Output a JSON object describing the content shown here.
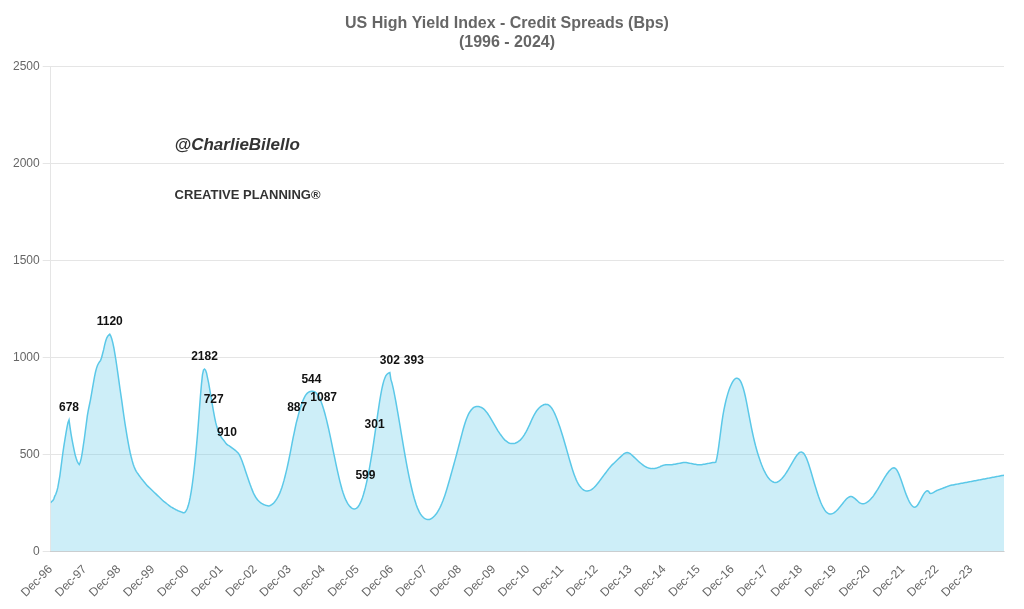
{
  "chart_data": {
    "type": "area",
    "title": "US High Yield Index - Credit Spreads (Bps)",
    "subtitle": "(1996 - 2024)",
    "watermark": "@CharlieBilello",
    "logo_text": "CREATIVE PLANNING®",
    "color": "#5BC8E8",
    "grid": "y",
    "legend": false,
    "ylim": [
      0,
      2500
    ],
    "yticks": [
      0,
      500,
      1000,
      1500,
      2000,
      2500
    ],
    "xlim": [
      0,
      936
    ],
    "xticks": [
      {
        "value": 0,
        "label": "Dec-96"
      },
      {
        "value": 33.464286,
        "label": "Dec-97"
      },
      {
        "value": 66.928571,
        "label": "Dec-98"
      },
      {
        "value": 100.392857,
        "label": "Dec-99"
      },
      {
        "value": 133.857143,
        "label": "Dec-00"
      },
      {
        "value": 167.321429,
        "label": "Dec-01"
      },
      {
        "value": 200.785714,
        "label": "Dec-02"
      },
      {
        "value": 234.25,
        "label": "Dec-03"
      },
      {
        "value": 267.714286,
        "label": "Dec-04"
      },
      {
        "value": 301.178571,
        "label": "Dec-05"
      },
      {
        "value": 334.642857,
        "label": "Dec-06"
      },
      {
        "value": 368.107143,
        "label": "Dec-07"
      },
      {
        "value": 401.571429,
        "label": "Dec-08"
      },
      {
        "value": 435.035714,
        "label": "Dec-09"
      },
      {
        "value": 468.5,
        "label": "Dec-10"
      },
      {
        "value": 501.964286,
        "label": "Dec-11"
      },
      {
        "value": 535.428571,
        "label": "Dec-12"
      },
      {
        "value": 568.892857,
        "label": "Dec-13"
      },
      {
        "value": 602.357143,
        "label": "Dec-14"
      },
      {
        "value": 635.821429,
        "label": "Dec-15"
      },
      {
        "value": 669.285714,
        "label": "Dec-16"
      },
      {
        "value": 702.75,
        "label": "Dec-17"
      },
      {
        "value": 736.214286,
        "label": "Dec-18"
      },
      {
        "value": 769.678571,
        "label": "Dec-19"
      },
      {
        "value": 803.142857,
        "label": "Dec-20"
      },
      {
        "value": 836.607143,
        "label": "Dec-21"
      },
      {
        "value": 870.071429,
        "label": "Dec-22"
      },
      {
        "value": 903.535714,
        "label": "Dec-23"
      }
    ],
    "annotations": [
      {
        "text": "678",
        "x": 18,
        "y": 678
      },
      {
        "text": "1120",
        "x": 58,
        "y": 1120
      },
      {
        "text": "2182",
        "x": 151,
        "y": 940
      },
      {
        "text": "727",
        "x": 160,
        "y": 718
      },
      {
        "text": "910",
        "x": 173,
        "y": 552
      },
      {
        "text": "887",
        "x": 242,
        "y": 680
      },
      {
        "text": "544",
        "x": 256,
        "y": 826
      },
      {
        "text": "1087",
        "x": 268,
        "y": 733
      },
      {
        "text": "599",
        "x": 309,
        "y": 330
      },
      {
        "text": "301",
        "x": 318,
        "y": 594
      },
      {
        "text": "302",
        "x": 333,
        "y": 922
      },
      {
        "text": "393",
        "x": 333,
        "y": 922
      }
    ],
    "values": [
      250,
      258,
      262,
      270,
      285,
      295,
      310,
      330,
      360,
      390,
      430,
      470,
      510,
      545,
      578,
      610,
      640,
      665,
      678,
      640,
      605,
      575,
      548,
      522,
      498,
      480,
      465,
      455,
      448,
      460,
      480,
      510,
      545,
      580,
      620,
      660,
      700,
      730,
      755,
      780,
      810,
      840,
      870,
      900,
      925,
      945,
      960,
      970,
      978,
      985,
      1000,
      1020,
      1040,
      1065,
      1085,
      1100,
      1110,
      1115,
      1120,
      1110,
      1095,
      1075,
      1050,
      1020,
      988,
      952,
      915,
      878,
      840,
      805,
      768,
      730,
      693,
      658,
      625,
      593,
      563,
      535,
      510,
      488,
      468,
      450,
      435,
      423,
      413,
      405,
      398,
      390,
      383,
      376,
      370,
      363,
      357,
      350,
      344,
      338,
      333,
      328,
      323,
      318,
      313,
      308,
      303,
      298,
      293,
      288,
      283,
      278,
      273,
      268,
      263,
      258,
      254,
      250,
      246,
      242,
      238,
      234,
      230,
      227,
      224,
      221,
      218,
      215,
      213,
      210,
      208,
      206,
      204,
      202,
      200,
      200,
      203,
      210,
      220,
      235,
      255,
      280,
      310,
      345,
      385,
      430,
      480,
      535,
      595,
      660,
      730,
      800,
      860,
      910,
      935,
      940,
      935,
      920,
      895,
      870,
      840,
      810,
      778,
      748,
      718,
      690,
      665,
      645,
      628,
      615,
      603,
      593,
      585,
      578,
      572,
      565,
      558,
      552,
      548,
      545,
      542,
      538,
      534,
      530,
      526,
      522,
      518,
      513,
      508,
      500,
      490,
      478,
      465,
      450,
      435,
      419,
      403,
      388,
      372,
      357,
      342,
      328,
      315,
      302,
      291,
      282,
      274,
      267,
      261,
      256,
      252,
      248,
      245,
      242,
      240,
      238,
      237,
      236,
      235,
      236,
      238,
      241,
      245,
      250,
      256,
      263,
      271,
      280,
      290,
      302,
      315,
      330,
      347,
      365,
      385,
      406,
      428,
      452,
      477,
      503,
      530,
      558,
      585,
      610,
      635,
      660,
      680,
      700,
      720,
      738,
      754,
      769,
      782,
      793,
      803,
      810,
      816,
      820,
      823,
      825,
      826,
      826,
      825,
      823,
      820,
      815,
      808,
      800,
      790,
      778,
      765,
      750,
      733,
      715,
      695,
      674,
      652,
      629,
      605,
      580,
      555,
      529,
      503,
      478,
      453,
      428,
      405,
      382,
      360,
      340,
      321,
      304,
      289,
      275,
      263,
      253,
      244,
      237,
      231,
      226,
      222,
      220,
      219,
      220,
      222,
      226,
      232,
      240,
      250,
      262,
      276,
      292,
      310,
      330,
      352,
      376,
      402,
      430,
      460,
      491,
      524,
      558,
      594,
      631,
      668,
      705,
      740,
      775,
      806,
      834,
      858,
      878,
      893,
      905,
      912,
      917,
      920,
      922,
      887,
      870,
      848,
      824,
      797,
      769,
      739,
      709,
      678,
      647,
      615,
      584,
      553,
      522,
      492,
      463,
      435,
      408,
      382,
      358,
      335,
      313,
      292,
      273,
      256,
      240,
      226,
      214,
      203,
      194,
      186,
      180,
      175,
      171,
      168,
      166,
      165,
      165,
      165,
      167,
      170,
      174,
      179,
      184,
      190,
      197,
      205,
      214,
      224,
      235,
      247,
      260,
      274,
      289,
      305,
      322,
      340,
      358,
      376,
      395,
      414,
      433,
      452,
      471,
      490,
      510,
      530,
      550,
      570,
      590,
      610,
      630,
      648,
      665,
      680,
      693,
      705,
      715,
      723,
      730,
      736,
      741,
      744,
      746,
      747,
      747,
      747,
      746,
      744,
      742,
      739,
      735,
      730,
      724,
      718,
      711,
      703,
      695,
      686,
      677,
      668,
      659,
      650,
      641,
      632,
      623,
      615,
      607,
      600,
      593,
      586,
      580,
      574,
      570,
      566,
      562,
      559,
      557,
      556,
      556,
      556,
      557,
      558,
      560,
      563,
      566,
      570,
      574,
      580,
      586,
      593,
      601,
      610,
      619,
      629,
      640,
      651,
      663,
      675,
      686,
      697,
      707,
      716,
      724,
      731,
      737,
      742,
      746,
      750,
      753,
      756,
      758,
      759,
      758,
      757,
      754,
      750,
      745,
      738,
      730,
      720,
      709,
      697,
      684,
      670,
      655,
      640,
      624,
      607,
      590,
      572,
      554,
      536,
      517,
      499,
      480,
      462,
      444,
      427,
      411,
      396,
      382,
      369,
      358,
      348,
      340,
      333,
      327,
      322,
      318,
      315,
      313,
      312,
      312,
      313,
      314,
      316,
      319,
      323,
      327,
      332,
      338,
      344,
      350,
      357,
      364,
      371,
      378,
      385,
      392,
      399,
      406,
      413,
      420,
      427,
      433,
      439,
      445,
      450,
      455,
      460,
      465,
      470,
      475,
      480,
      485,
      490,
      495,
      500,
      504,
      507,
      509,
      510,
      509,
      507,
      504,
      500,
      495,
      490,
      485,
      480,
      475,
      470,
      465,
      460,
      456,
      452,
      448,
      444,
      440,
      437,
      434,
      432,
      430,
      429,
      428,
      427,
      427,
      427,
      428,
      429,
      430,
      432,
      434,
      436,
      439,
      441,
      443,
      445,
      446,
      447,
      447,
      447,
      447,
      447,
      447,
      447,
      448,
      449,
      450,
      451,
      452,
      453,
      454,
      455,
      456,
      457,
      458,
      458,
      458,
      458,
      457,
      456,
      455,
      454,
      453,
      452,
      451,
      450,
      449,
      448,
      447,
      447,
      447,
      447,
      447,
      448,
      449,
      450,
      451,
      452,
      453,
      454,
      455,
      456,
      457,
      458,
      459,
      459,
      460,
      480,
      510,
      545,
      585,
      625,
      665,
      700,
      730,
      755,
      778,
      798,
      816,
      832,
      846,
      858,
      869,
      878,
      885,
      890,
      893,
      893,
      891,
      887,
      880,
      870,
      857,
      841,
      822,
      800,
      775,
      748,
      720,
      692,
      665,
      638,
      613,
      589,
      567,
      546,
      527,
      509,
      492,
      476,
      461,
      447,
      434,
      422,
      411,
      401,
      392,
      384,
      377,
      371,
      366,
      362,
      359,
      357,
      356,
      356,
      357,
      359,
      362,
      366,
      371,
      376,
      382,
      389,
      396,
      404,
      412,
      420,
      429,
      438,
      447,
      456,
      465,
      474,
      483,
      491,
      498,
      504,
      509,
      512,
      513,
      511,
      507,
      501,
      492,
      481,
      468,
      453,
      437,
      420,
      402,
      384,
      366,
      348,
      331,
      314,
      298,
      282,
      268,
      254,
      242,
      231,
      222,
      213,
      206,
      201,
      197,
      194,
      193,
      193,
      194,
      196,
      199,
      203,
      207,
      212,
      218,
      224,
      230,
      237,
      243,
      250,
      257,
      263,
      269,
      274,
      278,
      281,
      283,
      283,
      282,
      279,
      275,
      271,
      266,
      261,
      256,
      252,
      249,
      247,
      246,
      246,
      247,
      249,
      252,
      255,
      259,
      264,
      269,
      275,
      281,
      288,
      296,
      304,
      312,
      320,
      329,
      338,
      347,
      356,
      365,
      374,
      383,
      391,
      399,
      406,
      413,
      419,
      424,
      428,
      430,
      431,
      429,
      425,
      418,
      408,
      396,
      383,
      368,
      353,
      337,
      322,
      307,
      293,
      280,
      268,
      257,
      248,
      240,
      234,
      230,
      228,
      229,
      232,
      238,
      246,
      255,
      265,
      275,
      285,
      294,
      302,
      308,
      312,
      313,
      310,
      301,
      299,
      300,
      302,
      305,
      308,
      311,
      314,
      316,
      318,
      320,
      322,
      324,
      326,
      328,
      330,
      332,
      334,
      336,
      338,
      340,
      341,
      342,
      343,
      344,
      345,
      346,
      347,
      348,
      349,
      350,
      351,
      352,
      353,
      354,
      355,
      356,
      357,
      358,
      359,
      360,
      361,
      362,
      363,
      364,
      365,
      366,
      367,
      368,
      369,
      370,
      371,
      372,
      373,
      374,
      375,
      376,
      377,
      378,
      379,
      380,
      381,
      382,
      383,
      384,
      385,
      386,
      387,
      388,
      389,
      390,
      391,
      392,
      393
    ]
  }
}
